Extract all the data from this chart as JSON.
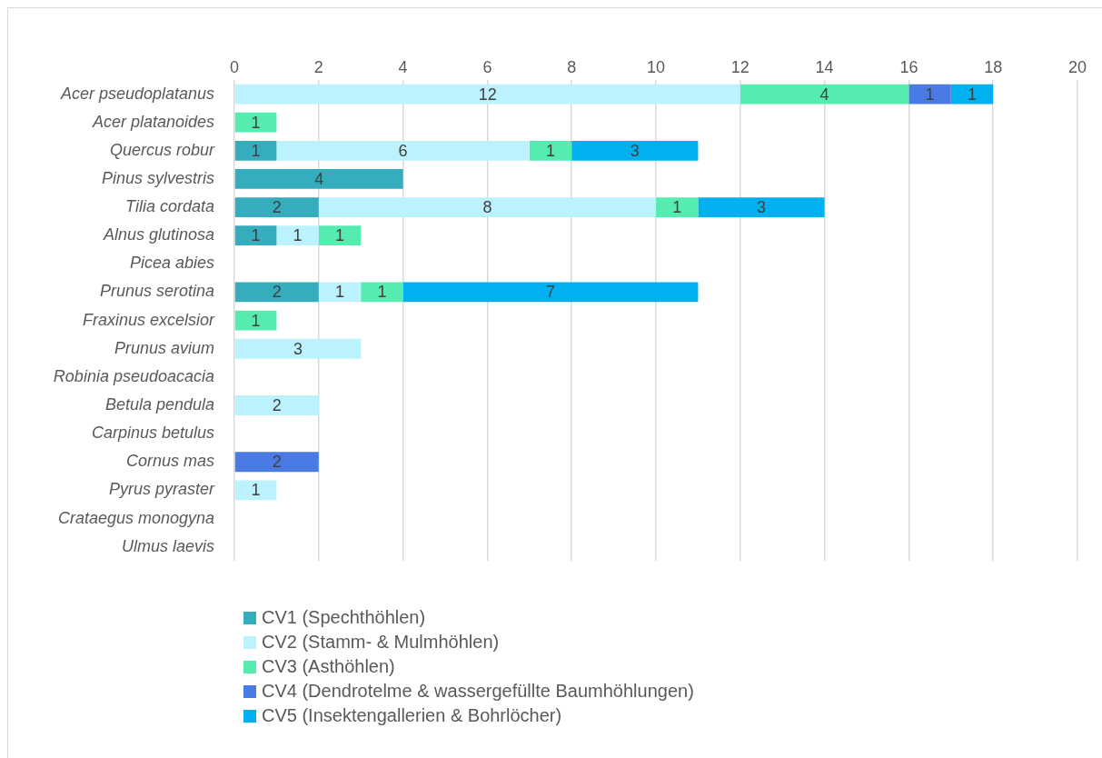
{
  "chart_data": {
    "type": "bar",
    "orientation": "horizontal",
    "stacked": true,
    "categories": [
      "Acer pseudoplatanus",
      "Acer platanoides",
      "Quercus robur",
      "Pinus sylvestris",
      "Tilia cordata",
      "Alnus glutinosa",
      "Picea abies",
      "Prunus serotina",
      "Fraxinus excelsior",
      "Prunus avium",
      "Robinia pseudoacacia",
      "Betula pendula",
      "Carpinus betulus",
      "Cornus mas",
      "Pyrus pyraster",
      "Crataegus monogyna",
      "Ulmus laevis"
    ],
    "series": [
      {
        "name": "CV1 (Spechthöhlen)",
        "color": "#35adbd",
        "values": [
          null,
          null,
          1,
          4,
          2,
          1,
          null,
          2,
          null,
          null,
          null,
          null,
          null,
          null,
          null,
          null,
          null
        ]
      },
      {
        "name": "CV2 (Stamm- & Mulmhöhlen)",
        "color": "#bbf2fd",
        "values": [
          12,
          null,
          6,
          null,
          8,
          1,
          null,
          1,
          null,
          3,
          null,
          2,
          null,
          null,
          1,
          null,
          null
        ]
      },
      {
        "name": "CV3 (Asthöhlen)",
        "color": "#56ecb0",
        "values": [
          4,
          1,
          1,
          null,
          1,
          1,
          null,
          1,
          1,
          null,
          null,
          null,
          null,
          null,
          null,
          null,
          null
        ]
      },
      {
        "name": "CV4 (Dendrotelme & wassergefüllte Baumhöhlungen)",
        "color": "#4a7be5",
        "values": [
          1,
          null,
          null,
          null,
          null,
          null,
          null,
          null,
          null,
          null,
          null,
          null,
          null,
          2,
          null,
          null,
          null
        ]
      },
      {
        "name": "CV5 (Insektengallerien & Bohrlöcher)",
        "color": "#00b0f0",
        "values": [
          1,
          null,
          3,
          null,
          3,
          null,
          null,
          7,
          null,
          null,
          null,
          null,
          null,
          null,
          null,
          null,
          null
        ]
      }
    ],
    "xlim": [
      0,
      20
    ],
    "xticks": [
      0,
      2,
      4,
      6,
      8,
      10,
      12,
      14,
      16,
      18,
      20
    ],
    "grid": "x",
    "legend": "bottom",
    "data_labels": true
  }
}
